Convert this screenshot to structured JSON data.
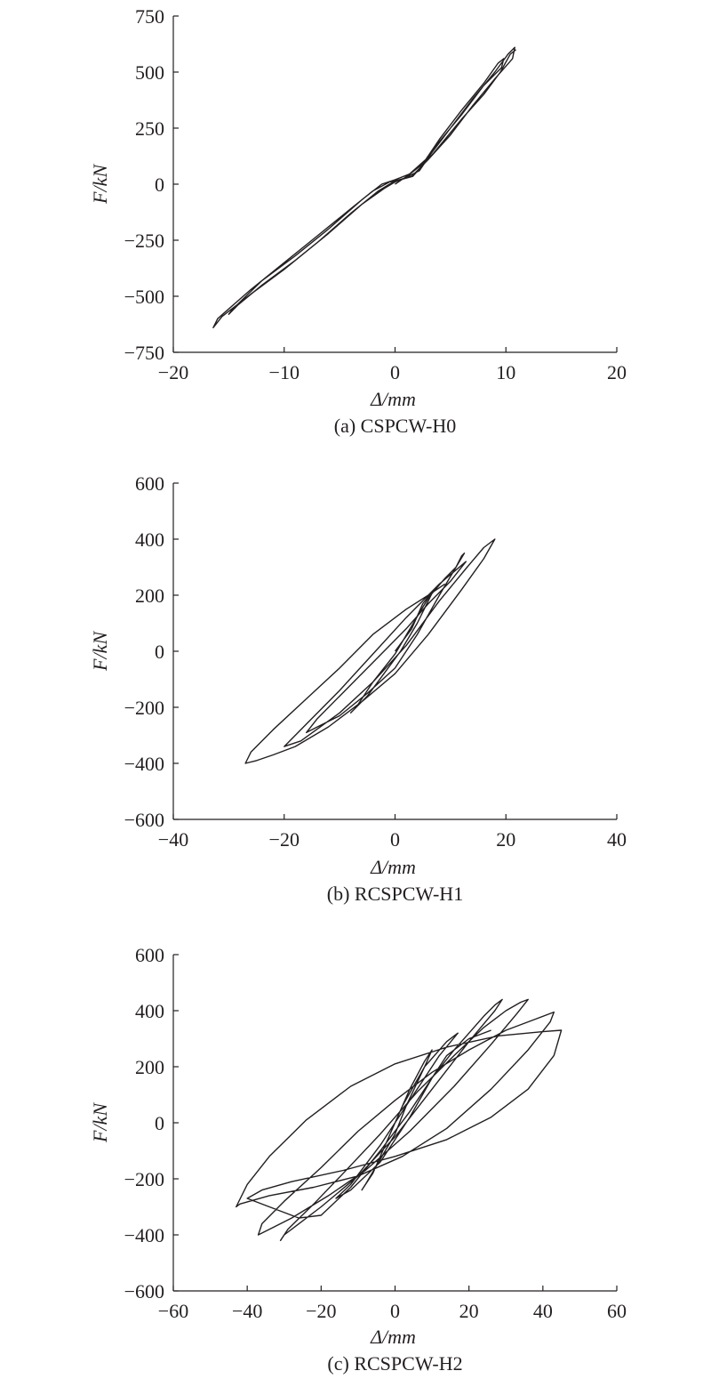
{
  "chart_data": [
    {
      "type": "line",
      "caption": "(a) CSPCW-H0",
      "xlabel": "Δ/mm",
      "ylabel": "F/kN",
      "xlim": [
        -20,
        20
      ],
      "ylim": [
        -750,
        750
      ],
      "xticks": [
        "−20",
        "−10",
        "0",
        "10",
        "20"
      ],
      "yticks": [
        "750",
        "500",
        "250",
        "0",
        "−250",
        "−500",
        "−750"
      ],
      "grid": false,
      "series": [
        {
          "values": [
            [
              0,
              0
            ],
            [
              1.2,
              40
            ],
            [
              2.5,
              90
            ],
            [
              4,
              200
            ],
            [
              6,
              330
            ],
            [
              8,
              450
            ],
            [
              9.3,
              540
            ],
            [
              9.8,
              560
            ],
            [
              9.6,
              520
            ],
            [
              8,
              440
            ],
            [
              6,
              310
            ],
            [
              4,
              190
            ],
            [
              2.2,
              60
            ],
            [
              1,
              30
            ],
            [
              0,
              10
            ],
            [
              -1,
              -20
            ],
            [
              -3,
              -90
            ],
            [
              -6,
              -220
            ],
            [
              -9,
              -340
            ],
            [
              -12,
              -450
            ],
            [
              -14.2,
              -540
            ],
            [
              -15,
              -580
            ],
            [
              -14.7,
              -560
            ],
            [
              -12,
              -430
            ],
            [
              -9,
              -320
            ],
            [
              -6,
              -200
            ],
            [
              -3,
              -70
            ],
            [
              -1.2,
              0
            ],
            [
              0,
              20
            ],
            [
              1.3,
              45
            ],
            [
              3,
              120
            ],
            [
              5,
              250
            ],
            [
              7,
              380
            ],
            [
              9,
              500
            ],
            [
              10.2,
              580
            ],
            [
              10.8,
              610
            ],
            [
              10.6,
              560
            ],
            [
              9,
              470
            ],
            [
              7,
              350
            ],
            [
              5,
              220
            ],
            [
              3,
              110
            ],
            [
              1.5,
              35
            ],
            [
              0,
              15
            ],
            [
              -1.5,
              -30
            ],
            [
              -4,
              -130
            ],
            [
              -7,
              -260
            ],
            [
              -10,
              -380
            ],
            [
              -13,
              -490
            ],
            [
              -15.6,
              -590
            ],
            [
              -16.4,
              -640
            ],
            [
              -16,
              -600
            ],
            [
              -13,
              -470
            ],
            [
              -10,
              -350
            ],
            [
              -7,
              -230
            ],
            [
              -4,
              -110
            ],
            [
              -2,
              -30
            ],
            [
              -0.5,
              10
            ],
            [
              0.5,
              20
            ],
            [
              1.6,
              35
            ],
            [
              3.5,
              140
            ],
            [
              6,
              290
            ],
            [
              8,
              400
            ],
            [
              9.5,
              500
            ],
            [
              10.4,
              580
            ],
            [
              10.9,
              600
            ]
          ]
        }
      ]
    },
    {
      "type": "line",
      "caption": "(b) RCSPCW-H1",
      "xlabel": "Δ/mm",
      "ylabel": "F/kN",
      "xlim": [
        -40,
        40
      ],
      "ylim": [
        -600,
        600
      ],
      "xticks": [
        "−40",
        "−20",
        "0",
        "20",
        "40"
      ],
      "yticks": [
        "600",
        "400",
        "200",
        "0",
        "−200",
        "−400",
        "−600"
      ],
      "grid": false,
      "series": [
        {
          "values": [
            [
              0,
              0
            ],
            [
              3,
              80
            ],
            [
              5,
              170
            ],
            [
              7,
              220
            ],
            [
              6.5,
              200
            ],
            [
              4,
              100
            ],
            [
              1,
              0
            ],
            [
              -2,
              -80
            ],
            [
              -5,
              -160
            ],
            [
              -8,
              -220
            ],
            [
              -7,
              -200
            ],
            [
              -4,
              -110
            ],
            [
              0,
              -10
            ],
            [
              3,
              90
            ],
            [
              6,
              190
            ],
            [
              9,
              260
            ],
            [
              11,
              300
            ],
            [
              12,
              340
            ],
            [
              12.5,
              350
            ],
            [
              11,
              300
            ],
            [
              8,
              200
            ],
            [
              4,
              60
            ],
            [
              0,
              -60
            ],
            [
              -5,
              -150
            ],
            [
              -10,
              -230
            ],
            [
              -14,
              -270
            ],
            [
              -16,
              -290
            ],
            [
              -14,
              -240
            ],
            [
              -9,
              -140
            ],
            [
              -4,
              -40
            ],
            [
              2,
              80
            ],
            [
              6,
              170
            ],
            [
              10,
              250
            ],
            [
              12.8,
              320
            ],
            [
              8,
              240
            ],
            [
              2,
              120
            ],
            [
              -4,
              -10
            ],
            [
              -10,
              -140
            ],
            [
              -16,
              -260
            ],
            [
              -20,
              -340
            ],
            [
              -17,
              -320
            ],
            [
              -10,
              -220
            ],
            [
              -4,
              -110
            ],
            [
              2,
              20
            ],
            [
              8,
              180
            ],
            [
              13,
              300
            ],
            [
              16,
              370
            ],
            [
              18,
              400
            ],
            [
              16,
              330
            ],
            [
              12,
              220
            ],
            [
              6,
              60
            ],
            [
              0,
              -80
            ],
            [
              -6,
              -180
            ],
            [
              -12,
              -270
            ],
            [
              -18,
              -340
            ],
            [
              -22,
              -370
            ],
            [
              -25,
              -390
            ],
            [
              -27,
              -400
            ],
            [
              -26,
              -360
            ],
            [
              -22,
              -280
            ],
            [
              -16,
              -170
            ],
            [
              -10,
              -60
            ],
            [
              -4,
              60
            ],
            [
              2,
              150
            ],
            [
              6,
              200
            ],
            [
              9,
              240
            ]
          ]
        }
      ]
    },
    {
      "type": "line",
      "caption": "(c) RCSPCW-H2",
      "xlabel": "Δ/mm",
      "ylabel": "F/kN",
      "xlim": [
        -60,
        60
      ],
      "ylim": [
        -600,
        600
      ],
      "xticks": [
        "−60",
        "−40",
        "−20",
        "0",
        "20",
        "40",
        "60"
      ],
      "yticks": [
        "600",
        "400",
        "200",
        "0",
        "−200",
        "−400",
        "−600"
      ],
      "grid": false,
      "series": [
        {
          "values": [
            [
              0,
              0
            ],
            [
              4,
              120
            ],
            [
              8,
              220
            ],
            [
              10,
              260
            ],
            [
              8,
              200
            ],
            [
              3,
              60
            ],
            [
              0,
              -40
            ],
            [
              -4,
              -130
            ],
            [
              -8,
              -220
            ],
            [
              -9,
              -240
            ],
            [
              -6,
              -180
            ],
            [
              -2,
              -60
            ],
            [
              2,
              60
            ],
            [
              8,
              200
            ],
            [
              14,
              290
            ],
            [
              17,
              320
            ],
            [
              12,
              240
            ],
            [
              4,
              80
            ],
            [
              -4,
              -80
            ],
            [
              -12,
              -220
            ],
            [
              -16,
              -270
            ],
            [
              -12,
              -240
            ],
            [
              -4,
              -140
            ],
            [
              4,
              20
            ],
            [
              10,
              160
            ],
            [
              16,
              260
            ],
            [
              20,
              320
            ],
            [
              24,
              380
            ],
            [
              27,
              420
            ],
            [
              29,
              440
            ],
            [
              27,
              400
            ],
            [
              20,
              290
            ],
            [
              10,
              120
            ],
            [
              0,
              -50
            ],
            [
              -10,
              -190
            ],
            [
              -20,
              -300
            ],
            [
              -26,
              -360
            ],
            [
              -30,
              -400
            ],
            [
              -31,
              -420
            ],
            [
              -29,
              -380
            ],
            [
              -22,
              -290
            ],
            [
              -14,
              -180
            ],
            [
              -4,
              -40
            ],
            [
              6,
              110
            ],
            [
              16,
              240
            ],
            [
              24,
              340
            ],
            [
              30,
              400
            ],
            [
              34,
              430
            ],
            [
              36,
              440
            ],
            [
              33,
              390
            ],
            [
              26,
              280
            ],
            [
              16,
              130
            ],
            [
              4,
              -30
            ],
            [
              -8,
              -170
            ],
            [
              -18,
              -260
            ],
            [
              -28,
              -340
            ],
            [
              -34,
              -380
            ],
            [
              -37,
              -400
            ],
            [
              -36,
              -360
            ],
            [
              -30,
              -280
            ],
            [
              -20,
              -160
            ],
            [
              -10,
              -30
            ],
            [
              0,
              80
            ],
            [
              10,
              180
            ],
            [
              20,
              260
            ],
            [
              30,
              330
            ],
            [
              38,
              370
            ],
            [
              43,
              395
            ],
            [
              42,
              360
            ],
            [
              36,
              260
            ],
            [
              26,
              120
            ],
            [
              14,
              -20
            ],
            [
              2,
              -120
            ],
            [
              -10,
              -190
            ],
            [
              -22,
              -230
            ],
            [
              -34,
              -260
            ],
            [
              -42,
              -290
            ],
            [
              -43,
              -300
            ],
            [
              -40,
              -220
            ],
            [
              -34,
              -120
            ],
            [
              -24,
              10
            ],
            [
              -12,
              130
            ],
            [
              0,
              210
            ],
            [
              14,
              270
            ],
            [
              28,
              310
            ],
            [
              40,
              325
            ],
            [
              45,
              330
            ],
            [
              43,
              240
            ],
            [
              36,
              120
            ],
            [
              26,
              20
            ],
            [
              14,
              -60
            ],
            [
              0,
              -120
            ],
            [
              -14,
              -170
            ],
            [
              -28,
              -210
            ],
            [
              -36,
              -240
            ],
            [
              -40,
              -270
            ],
            [
              -34,
              -300
            ],
            [
              -26,
              -340
            ],
            [
              -20,
              -330
            ],
            [
              -12,
              -230
            ],
            [
              -4,
              -100
            ],
            [
              4,
              40
            ],
            [
              10,
              160
            ],
            [
              14,
              240
            ],
            [
              20,
              300
            ],
            [
              26,
              330
            ]
          ]
        }
      ]
    }
  ]
}
